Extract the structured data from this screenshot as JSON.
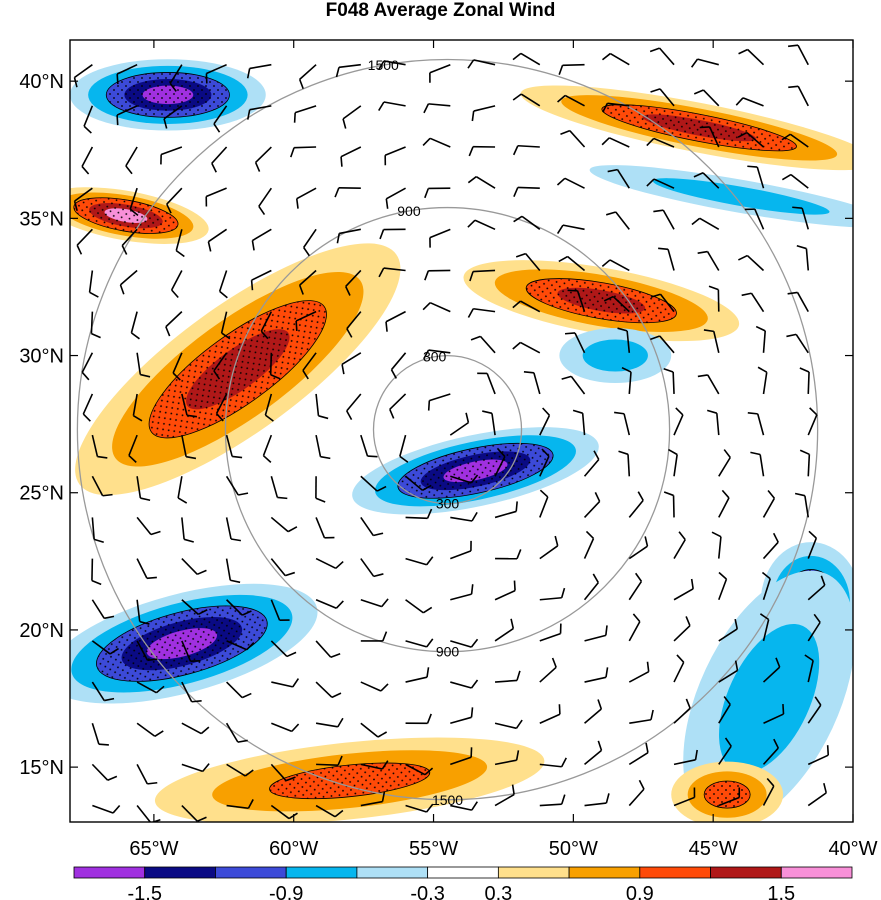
{
  "chart_data": {
    "type": "heatmap",
    "title": "F048 Average Zonal Wind",
    "xlabel": "",
    "ylabel": "",
    "xlim": [
      -68,
      -40
    ],
    "ylim": [
      13,
      41.5
    ],
    "x_ticks": [
      {
        "value": -65,
        "label": "65°W"
      },
      {
        "value": -60,
        "label": "60°W"
      },
      {
        "value": -55,
        "label": "55°W"
      },
      {
        "value": -50,
        "label": "50°W"
      },
      {
        "value": -45,
        "label": "45°W"
      },
      {
        "value": -40,
        "label": "40°W"
      }
    ],
    "y_ticks": [
      {
        "value": 40,
        "label": "40°N"
      },
      {
        "value": 35,
        "label": "35°N"
      },
      {
        "value": 30,
        "label": "30°N"
      },
      {
        "value": 25,
        "label": "25°N"
      },
      {
        "value": 20,
        "label": "20°N"
      },
      {
        "value": 15,
        "label": "15°N"
      }
    ],
    "colorbar": {
      "levels": [
        -1.8,
        -1.5,
        -1.2,
        -0.9,
        -0.6,
        -0.3,
        0.3,
        0.6,
        0.9,
        1.2,
        1.5,
        1.8
      ],
      "labels": [
        "-1.5",
        "-0.9",
        "-0.3",
        "0.3",
        "0.9",
        "1.5"
      ],
      "colors": [
        "#a030e0",
        "#0a0a84",
        "#3c4ad8",
        "#06b6ee",
        "#aee0f6",
        "#ffffff",
        "#ffe08c",
        "#f8a000",
        "#ff4a08",
        "#b01818",
        "#f890d8"
      ]
    },
    "range_rings": {
      "center": [
        -54.5,
        27.3
      ],
      "distances": [
        300,
        900,
        1500
      ]
    },
    "features": [
      {
        "name": "jet-northwest",
        "value": -1.7,
        "center": [
          -64.5,
          39.5
        ],
        "radius": [
          3.5,
          1.3
        ],
        "angle": 0
      },
      {
        "name": "jet-northeast",
        "value": 1.3,
        "center": [
          -45.5,
          38.3
        ],
        "radius": [
          6.5,
          0.9
        ],
        "angle": -11
      },
      {
        "name": "band-east-blue",
        "value": -0.8,
        "center": [
          -44,
          35.8
        ],
        "radius": [
          5.5,
          0.6
        ],
        "angle": -10
      },
      {
        "name": "jet-west-35N",
        "value": 1.5,
        "center": [
          -66,
          35.1
        ],
        "radius": [
          3,
          0.9
        ],
        "angle": -10
      },
      {
        "name": "cyclone-band-west",
        "value": 1.3,
        "center": [
          -62,
          29.5
        ],
        "radius": [
          7,
          2.3
        ],
        "angle": 36
      },
      {
        "name": "band-33N-east",
        "value": 1.2,
        "center": [
          -49,
          32
        ],
        "radius": [
          5,
          1.2
        ],
        "angle": -10
      },
      {
        "name": "patch-30N",
        "value": -0.8,
        "center": [
          -48.5,
          30
        ],
        "radius": [
          2,
          1
        ],
        "angle": 0
      },
      {
        "name": "core-southwest",
        "value": -1.6,
        "center": [
          -53.5,
          25.8
        ],
        "radius": [
          4.5,
          1.3
        ],
        "angle": 12
      },
      {
        "name": "jet-southwest",
        "value": -1.7,
        "center": [
          -64,
          19.5
        ],
        "radius": [
          5,
          1.8
        ],
        "angle": 15
      },
      {
        "name": "core-southeast",
        "value": -1.4,
        "center": [
          -41.5,
          21
        ],
        "radius": [
          1.8,
          2.2
        ],
        "angle": 0
      },
      {
        "name": "band-southeast",
        "value": -0.7,
        "center": [
          -43,
          17.5
        ],
        "radius": [
          2.5,
          5
        ],
        "angle": -25
      },
      {
        "name": "band-south",
        "value": 1.0,
        "center": [
          -58,
          14.5
        ],
        "radius": [
          7,
          1.4
        ],
        "angle": 6
      },
      {
        "name": "band-south-east",
        "value": 1.0,
        "center": [
          -44.5,
          14
        ],
        "radius": [
          2,
          1.2
        ],
        "angle": 0
      }
    ]
  }
}
